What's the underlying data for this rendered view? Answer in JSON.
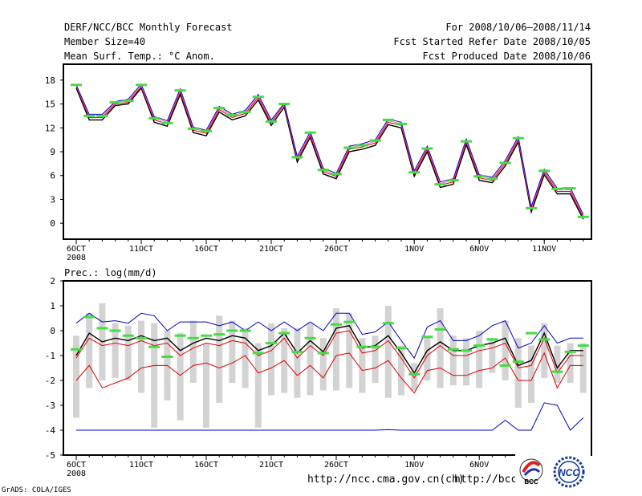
{
  "header": {
    "title": "DERF/NCC/BCC Monthly Forecast",
    "member_size": "Member Size=40",
    "variable": "Mean Surf. Temp.: °C Anom.",
    "period": "For 2008/10/06–2008/11/14",
    "started": "Fcst Started Refer Date 2008/10/05",
    "produced": "Fcst Produced Date 2008/10/06"
  },
  "footer": {
    "grads": "GrADS: COLA/IGES",
    "url1": "http://ncc.cma.gov.cn(ch)",
    "url2": "http://bcc."
  },
  "logos": {
    "bcc_label": "BCC",
    "ncc_label": "NCC"
  },
  "colors": {
    "median": "#000000",
    "ensemble_red": "#e00000",
    "ensemble_pink": "#ff69b4",
    "ensemble_blue": "#0000cc",
    "marker_green": "#44dd44",
    "bar_gray": "#d3d3d3"
  },
  "chart_data": [
    {
      "type": "line",
      "title": "Mean Surf. Temp.: °C Anom.",
      "xlabel": "",
      "ylabel": "",
      "days": 40,
      "x_ticks": [
        {
          "day": 0,
          "label": "6OCT",
          "sub": "2008"
        },
        {
          "day": 5,
          "label": "11OCT"
        },
        {
          "day": 10,
          "label": "16OCT"
        },
        {
          "day": 15,
          "label": "21OCT"
        },
        {
          "day": 20,
          "label": "26OCT"
        },
        {
          "day": 26,
          "label": "1NOV"
        },
        {
          "day": 31,
          "label": "6NOV"
        },
        {
          "day": 36,
          "label": "11NOV"
        }
      ],
      "ylim": [
        -2,
        20
      ],
      "y_ticks": [
        0,
        3,
        6,
        9,
        12,
        15,
        18
      ],
      "series": [
        {
          "name": "median",
          "color": "#000000",
          "values": [
            17.0,
            13.0,
            13.0,
            14.8,
            15.0,
            17.0,
            12.7,
            12.2,
            16.2,
            11.4,
            11.0,
            14.0,
            13.0,
            13.5,
            15.5,
            12.3,
            14.6,
            7.7,
            10.8,
            6.2,
            5.6,
            9.0,
            9.3,
            9.8,
            12.4,
            12.0,
            5.9,
            9.0,
            4.5,
            4.9,
            9.9,
            5.4,
            5.1,
            7.2,
            10.2,
            1.4,
            6.1,
            3.7,
            3.7,
            0.5
          ]
        },
        {
          "name": "red",
          "color": "#e00000",
          "values": [
            17.2,
            13.3,
            13.3,
            15.0,
            15.2,
            17.2,
            13.0,
            12.5,
            16.5,
            11.7,
            11.3,
            14.3,
            13.3,
            13.8,
            15.8,
            12.6,
            14.9,
            8.0,
            11.1,
            6.5,
            5.9,
            9.3,
            9.6,
            10.1,
            12.7,
            12.3,
            6.2,
            9.3,
            4.8,
            5.2,
            10.2,
            5.7,
            5.4,
            7.5,
            10.5,
            1.7,
            6.4,
            4.0,
            4.0,
            0.8
          ]
        },
        {
          "name": "pink",
          "color": "#ff69b4",
          "values": [
            17.3,
            13.5,
            13.5,
            15.2,
            15.4,
            17.3,
            13.2,
            12.7,
            16.7,
            11.9,
            11.5,
            14.5,
            13.5,
            14.0,
            16.0,
            12.8,
            15.0,
            8.2,
            11.3,
            6.7,
            6.1,
            9.5,
            9.8,
            10.3,
            12.9,
            12.5,
            6.4,
            9.5,
            5.0,
            5.4,
            10.4,
            5.9,
            5.6,
            7.7,
            10.7,
            1.9,
            6.6,
            4.2,
            4.2,
            1.0
          ]
        },
        {
          "name": "blue",
          "color": "#0000cc",
          "values": [
            17.4,
            13.7,
            13.7,
            15.3,
            15.6,
            17.5,
            13.4,
            12.9,
            16.9,
            12.1,
            11.7,
            14.7,
            13.7,
            14.2,
            16.2,
            13.0,
            15.1,
            8.4,
            11.5,
            6.9,
            6.3,
            9.7,
            10.0,
            10.5,
            13.1,
            12.7,
            6.6,
            9.7,
            5.2,
            5.6,
            10.6,
            6.1,
            5.8,
            7.9,
            10.9,
            2.1,
            6.8,
            4.4,
            4.5,
            1.1
          ]
        },
        {
          "name": "green-markers",
          "color": "#44dd44",
          "values": [
            17.4,
            13.5,
            13.5,
            15.2,
            15.4,
            17.4,
            13.2,
            12.6,
            16.7,
            11.9,
            11.6,
            14.5,
            13.6,
            14.0,
            15.9,
            12.8,
            15.0,
            8.3,
            11.4,
            6.7,
            6.2,
            9.5,
            9.8,
            10.4,
            13.0,
            12.5,
            6.4,
            9.4,
            4.9,
            5.4,
            10.3,
            5.9,
            5.6,
            7.6,
            10.7,
            1.9,
            6.6,
            4.3,
            4.4,
            0.8
          ]
        }
      ]
    },
    {
      "type": "line",
      "title": "Prec.: log(mm/d)",
      "xlabel": "",
      "ylabel": "",
      "days": 40,
      "x_ticks": [
        {
          "day": 0,
          "label": "6OCT",
          "sub": "2008"
        },
        {
          "day": 5,
          "label": "11OCT"
        },
        {
          "day": 10,
          "label": "16OCT"
        },
        {
          "day": 15,
          "label": "21OCT"
        },
        {
          "day": 20,
          "label": "26OCT"
        },
        {
          "day": 26,
          "label": "1NOV"
        },
        {
          "day": 31,
          "label": "6NOV"
        },
        {
          "day": 36,
          "label": "11NOV"
        }
      ],
      "ylim": [
        -5,
        2
      ],
      "y_ticks": [
        -5,
        -4,
        -3,
        -2,
        -1,
        0,
        1,
        2
      ],
      "bars": {
        "low": [
          -3.5,
          -2.3,
          -2.0,
          -1.9,
          -2.0,
          -2.5,
          -3.9,
          -2.8,
          -3.6,
          -2.1,
          -3.9,
          -2.9,
          -2.1,
          -2.3,
          -3.9,
          -2.6,
          -2.5,
          -2.7,
          -2.6,
          -2.4,
          -2.4,
          -2.3,
          -2.5,
          -2.1,
          -2.7,
          -2.6,
          -2.4,
          -2.0,
          -2.3,
          -2.2,
          -2.2,
          -2.3,
          -1.7,
          -2.0,
          -3.1,
          -2.9,
          -1.9,
          -2.1,
          -2.1,
          -2.5
        ],
        "high": [
          -0.2,
          0.7,
          1.1,
          0.3,
          0.2,
          0.4,
          0.3,
          0.0,
          -0.1,
          0.4,
          -0.5,
          0.6,
          0.4,
          0.1,
          -0.5,
          0.3,
          0.1,
          0.1,
          0.3,
          -0.3,
          0.9,
          0.7,
          -0.3,
          -0.2,
          1.0,
          -0.6,
          -1.3,
          -0.2,
          0.9,
          -0.2,
          -0.3,
          0.0,
          -0.3,
          0.4,
          -0.3,
          -0.6,
          0.3,
          -0.6,
          -0.5,
          -0.5
        ]
      },
      "series": [
        {
          "name": "blue-upper",
          "color": "#0000cc",
          "values": [
            0.3,
            0.7,
            0.35,
            0.4,
            0.3,
            0.7,
            0.6,
            0.0,
            0.35,
            0.35,
            0.35,
            0.2,
            0.35,
            0.0,
            0.35,
            0.0,
            0.35,
            0.0,
            0.35,
            0.0,
            0.7,
            0.7,
            -0.15,
            -0.05,
            0.35,
            -0.4,
            -1.1,
            0.15,
            0.4,
            -0.4,
            -0.4,
            -0.2,
            0.2,
            0.4,
            -0.7,
            -0.5,
            0.2,
            -0.5,
            -0.3,
            -0.3
          ]
        },
        {
          "name": "black",
          "color": "#000000",
          "values": [
            -1.0,
            -0.1,
            -0.45,
            -0.3,
            -0.4,
            -0.2,
            -0.4,
            -0.3,
            -0.8,
            -0.5,
            -0.3,
            -0.4,
            -0.2,
            -0.3,
            -0.8,
            -0.6,
            -0.1,
            -0.9,
            -0.4,
            -0.85,
            0.1,
            0.2,
            -0.7,
            -0.6,
            -0.2,
            -0.9,
            -1.7,
            -0.8,
            -0.45,
            -0.8,
            -0.8,
            -0.6,
            -0.5,
            -0.3,
            -1.4,
            -1.2,
            -0.1,
            -1.5,
            -0.8,
            -0.8
          ]
        },
        {
          "name": "red-upper",
          "color": "#e00000",
          "values": [
            -1.1,
            -0.3,
            -0.6,
            -0.5,
            -0.6,
            -0.4,
            -0.6,
            -0.5,
            -1.0,
            -0.7,
            -0.5,
            -0.6,
            -0.4,
            -0.5,
            -1.0,
            -0.8,
            -0.3,
            -1.1,
            -0.6,
            -1.0,
            -0.1,
            0.0,
            -0.9,
            -0.8,
            -0.4,
            -1.1,
            -1.9,
            -1.0,
            -0.6,
            -1.0,
            -1.0,
            -0.8,
            -0.7,
            -0.5,
            -1.5,
            -1.4,
            -0.3,
            -1.7,
            -1.0,
            -1.0
          ]
        },
        {
          "name": "red-lower",
          "color": "#e00000",
          "values": [
            -2.0,
            -1.4,
            -2.3,
            -2.1,
            -1.9,
            -1.5,
            -1.4,
            -1.4,
            -1.8,
            -1.4,
            -1.3,
            -1.5,
            -1.3,
            -1.0,
            -1.7,
            -1.5,
            -1.2,
            -1.8,
            -1.4,
            -1.9,
            -1.0,
            -0.9,
            -1.6,
            -1.5,
            -1.2,
            -1.9,
            -2.5,
            -1.6,
            -1.5,
            -1.8,
            -1.8,
            -1.6,
            -1.5,
            -1.1,
            -2.0,
            -2.0,
            -0.9,
            -2.3,
            -1.4,
            -1.4
          ]
        },
        {
          "name": "blue-lower",
          "color": "#0000cc",
          "values": [
            -4.0,
            -4.0,
            -4.0,
            -4.0,
            -4.0,
            -4.0,
            -4.0,
            -4.0,
            -4.0,
            -4.0,
            -4.0,
            -4.0,
            -4.0,
            -4.0,
            -4.0,
            -4.0,
            -4.0,
            -4.0,
            -4.0,
            -4.0,
            -4.0,
            -4.0,
            -4.0,
            -4.0,
            -3.98,
            -4.0,
            -4.0,
            -4.0,
            -4.0,
            -4.0,
            -4.0,
            -4.0,
            -4.0,
            -3.6,
            -4.0,
            -4.0,
            -2.9,
            -3.0,
            -4.0,
            -3.5
          ]
        },
        {
          "name": "green-markers",
          "color": "#44dd44",
          "values": [
            -0.75,
            0.55,
            0.1,
            0.0,
            -0.2,
            -0.3,
            -0.65,
            -1.05,
            -0.2,
            -0.3,
            -0.2,
            -0.15,
            0.0,
            0.0,
            -0.9,
            -0.5,
            -0.1,
            -0.85,
            -0.3,
            -0.9,
            0.25,
            0.35,
            -0.65,
            -0.65,
            0.3,
            -0.7,
            -1.75,
            -0.25,
            0.05,
            -0.75,
            -0.8,
            -0.6,
            -0.35,
            -1.4,
            -1.25,
            -0.1,
            -0.35,
            -1.65,
            -0.85,
            -0.6
          ]
        }
      ]
    }
  ]
}
